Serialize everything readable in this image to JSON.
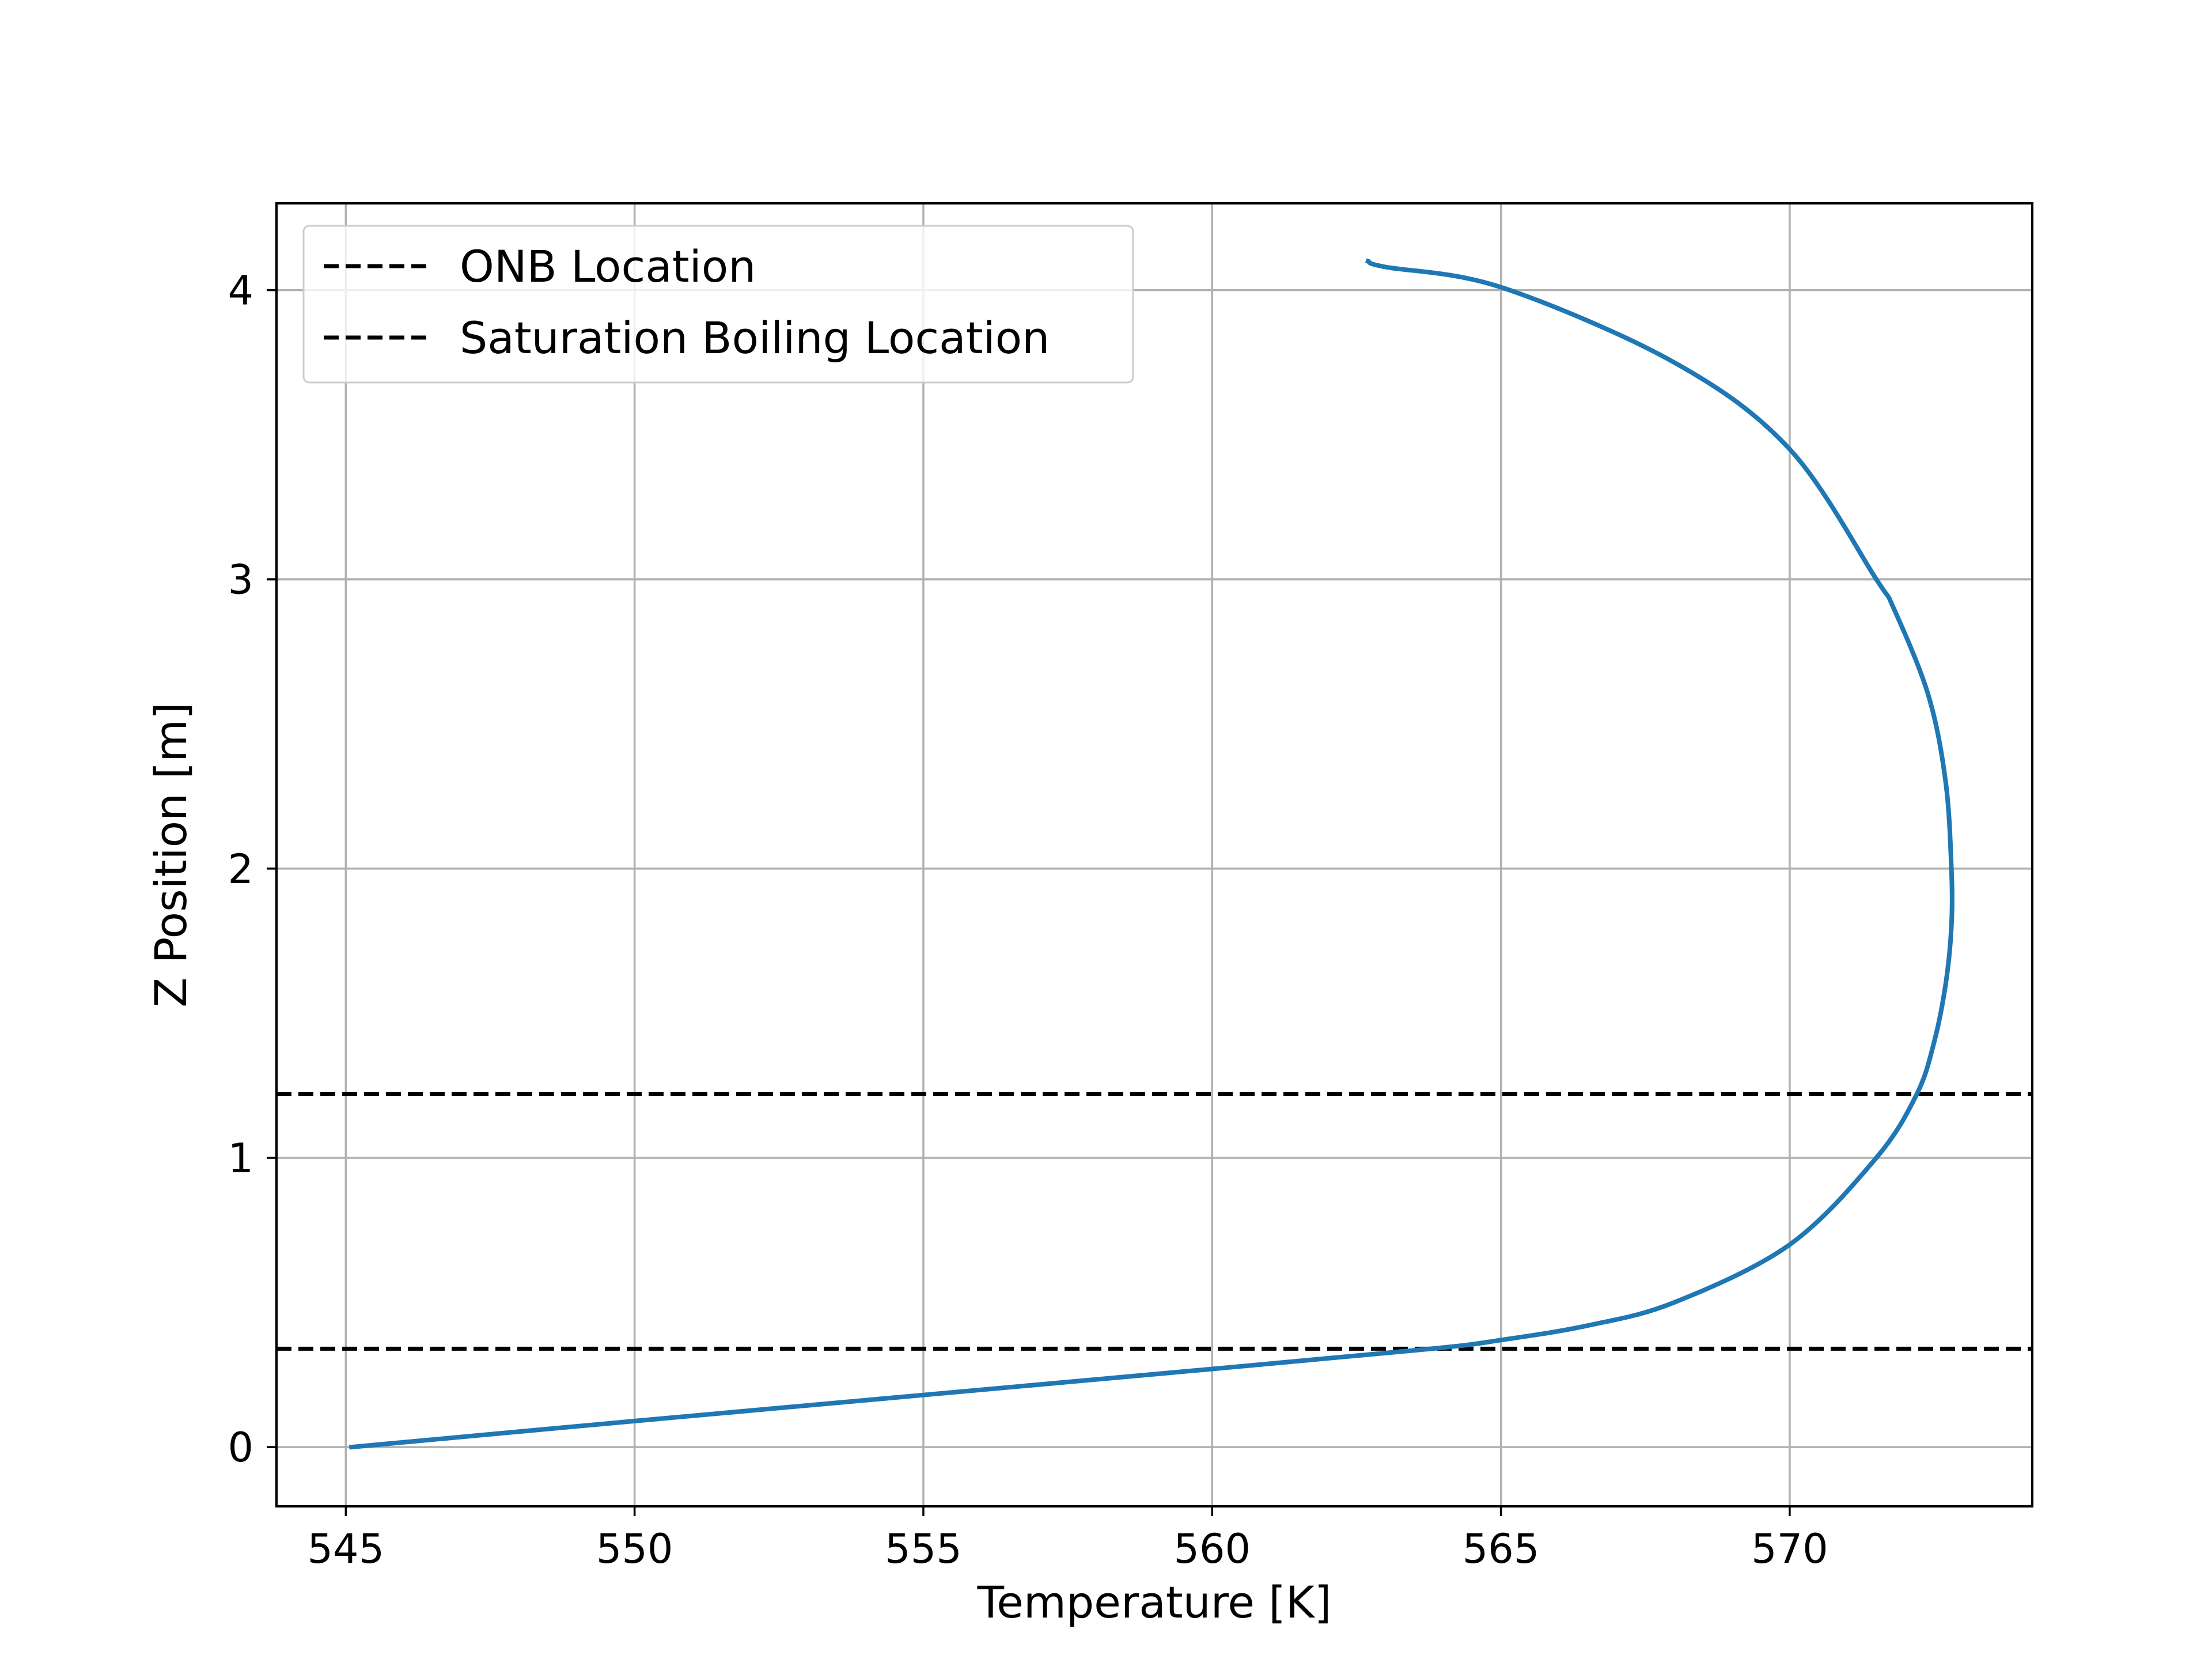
{
  "chart_data": {
    "type": "line",
    "title": "",
    "xlabel": "Temperature [K]",
    "ylabel": "Z Position [m]",
    "xlim": [
      543.8,
      574.2
    ],
    "ylim": [
      -0.205,
      4.3
    ],
    "xticks": [
      545,
      550,
      555,
      560,
      565,
      570
    ],
    "yticks": [
      0,
      1,
      2,
      3,
      4
    ],
    "xtick_labels": [
      "545",
      "550",
      "555",
      "560",
      "565",
      "570"
    ],
    "ytick_labels": [
      "0",
      "1",
      "2",
      "3",
      "4"
    ],
    "grid": true,
    "legend_position": "top-left",
    "series": [
      {
        "color": "#1f77b4",
        "x": [
          545.1,
          550.0,
          555.0,
          560.0,
          563.8,
          565.0,
          566.5,
          568.0,
          570.0,
          571.5,
          572.2,
          572.5,
          572.7,
          572.8,
          572.8,
          572.7,
          572.4,
          571.8,
          571.5,
          570.0,
          568.0,
          565.0,
          563.0,
          562.7
        ],
        "y": [
          0.0,
          0.09,
          0.18,
          0.27,
          0.34,
          0.37,
          0.42,
          0.5,
          0.7,
          1.0,
          1.22,
          1.4,
          1.6,
          1.8,
          2.0,
          2.3,
          2.6,
          2.9,
          3.0,
          3.45,
          3.75,
          4.01,
          4.08,
          4.1
        ]
      }
    ],
    "hlines": [
      {
        "name": "ONB Location",
        "y": 0.34,
        "color": "#000000",
        "style": "dashed"
      },
      {
        "name": "Saturation Boiling Location",
        "y": 1.22,
        "color": "#000000",
        "style": "dashed"
      }
    ],
    "legend": [
      "ONB Location",
      "Saturation Boiling Location"
    ]
  }
}
